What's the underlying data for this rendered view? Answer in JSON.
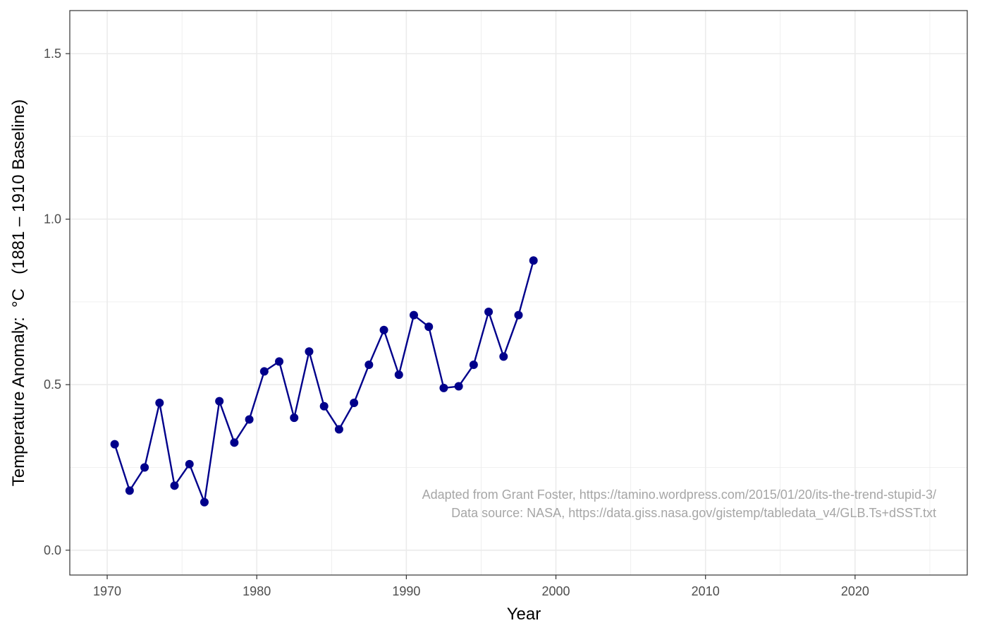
{
  "chart_data": {
    "type": "line",
    "title": "",
    "xlabel": "Year",
    "ylabel": "Temperature Anomaly:  °C   (1881 – 1910 Baseline)",
    "xlim": [
      1967.5,
      2027.5
    ],
    "ylim": [
      -0.075,
      1.63
    ],
    "x_ticks": [
      1970,
      1980,
      1990,
      2000,
      2010,
      2020
    ],
    "x_tick_labels": [
      "1970",
      "1980",
      "1990",
      "2000",
      "2010",
      "2020"
    ],
    "y_ticks": [
      0.0,
      0.5,
      1.0,
      1.5
    ],
    "y_tick_labels": [
      "0.0",
      "0.5",
      "1.0",
      "1.5"
    ],
    "grid": true,
    "series": [
      {
        "color": "#00008b",
        "x": [
          1970.5,
          1971.5,
          1972.5,
          1973.5,
          1974.5,
          1975.5,
          1976.5,
          1977.5,
          1978.5,
          1979.5,
          1980.5,
          1981.5,
          1982.5,
          1983.5,
          1984.5,
          1985.5,
          1986.5,
          1987.5,
          1988.5,
          1989.5,
          1990.5,
          1991.5,
          1992.5,
          1993.5,
          1994.5,
          1995.5,
          1996.5,
          1997.5,
          1998.5
        ],
        "y": [
          0.32,
          0.18,
          0.25,
          0.445,
          0.195,
          0.26,
          0.145,
          0.45,
          0.325,
          0.395,
          0.54,
          0.57,
          0.4,
          0.6,
          0.435,
          0.365,
          0.445,
          0.56,
          0.665,
          0.53,
          0.71,
          0.675,
          0.49,
          0.495,
          0.56,
          0.72,
          0.585,
          0.71,
          0.875
        ]
      }
    ],
    "annotations": [
      "Adapted from Grant Foster, https://tamino.wordpress.com/2015/01/20/its-the-trend-stupid-3/",
      "Data source: NASA, https://data.giss.nasa.gov/gistemp/tabledata_v4/GLB.Ts+dSST.txt"
    ]
  }
}
